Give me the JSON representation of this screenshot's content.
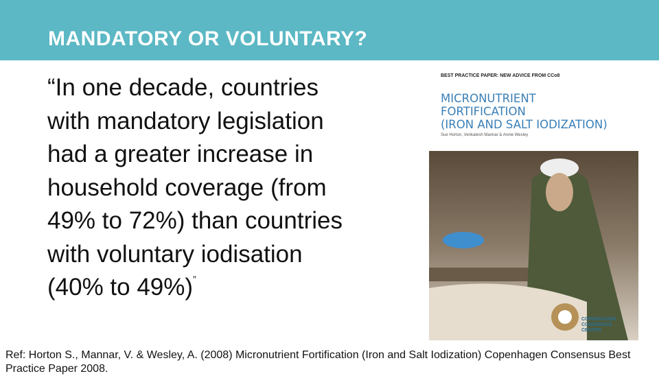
{
  "header": {
    "title": "MANDATORY OR VOLUNTARY?"
  },
  "quote": {
    "lines": [
      "“In one decade, countries",
      "with mandatory legislation",
      "had a greater increase in",
      "household coverage (from",
      "49% to 72%) than countries",
      "with voluntary iodisation",
      "(40% to 49%)"
    ],
    "close": "”"
  },
  "cover": {
    "series": "BEST PRACTICE PAPER: NEW ADVICE FROM CCo8",
    "title_lines": [
      "MICRONUTRIENT",
      "FORTIFICATION",
      "(IRON AND SALT IODIZATION)"
    ],
    "authors": "Sue Horton, Venkatesh Mannar & Annie Wesley",
    "logo_lines": [
      "COPENHAGEN",
      "CONSENSUS",
      "CENTER"
    ]
  },
  "reference": "Ref: Horton S., Mannar, V. & Wesley, A. (2008) Micronutrient Fortification (Iron and Salt Iodization) Copenhagen Consensus Best Practice Paper 2008."
}
